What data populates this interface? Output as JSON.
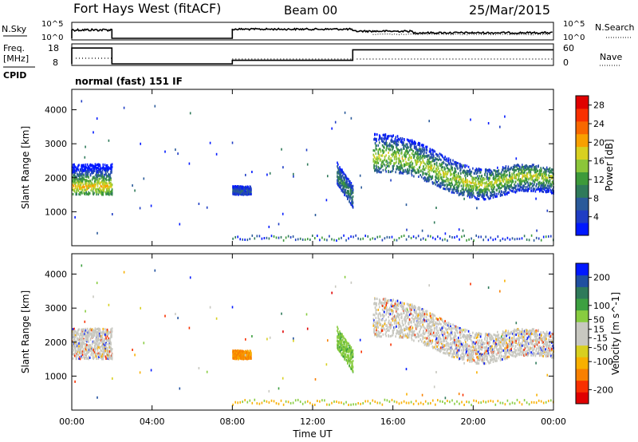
{
  "header": {
    "title": "Fort Hays West (fitACF)",
    "beam": "Beam 00",
    "date": "25/Mar/2015"
  },
  "strips": {
    "nsky_label": "N.Sky",
    "nsky_ticks": [
      "10^5",
      "10^0"
    ],
    "nsearch_label": "N.Search",
    "nsearch_ticks": [
      "10^5",
      "10^0"
    ],
    "freq_label_1": "Freq.",
    "freq_label_2": "[MHz]",
    "freq_ticks": [
      "18",
      "8"
    ],
    "nave_label": "Nave",
    "nave_ticks": [
      "60",
      "0"
    ],
    "cpid_label": "CPID",
    "cpid_text": "normal (fast) 151 IF"
  },
  "colors": {
    "power": [
      "#0018ff",
      "#1f3dc4",
      "#2a5a9a",
      "#2f7a5a",
      "#3d9a3a",
      "#8cc63a",
      "#d8d020",
      "#f8a000",
      "#f86800",
      "#f83000",
      "#e00000"
    ],
    "velocity": [
      "#e00000",
      "#f83000",
      "#f88000",
      "#f8b000",
      "#d8d020",
      "#c8c8c0",
      "#c8c8c0",
      "#88cc40",
      "#3da040",
      "#2f7a5a",
      "#2050a0",
      "#0018ff"
    ]
  },
  "chart_data": [
    {
      "type": "heatmap",
      "name_hint": "power",
      "xlabel": "",
      "ylabel": "Slant Range [km]",
      "xlim": [
        0,
        24
      ],
      "ylim": [
        0,
        4600
      ],
      "y_ticks": [
        1000,
        2000,
        3000,
        4000
      ],
      "colorbar_label": "Power [dB]",
      "colorbar_ticks": [
        4,
        8,
        12,
        16,
        20,
        24,
        28
      ],
      "colorbar_range": [
        0,
        30
      ],
      "scatter_regions": [
        {
          "t0": 0.0,
          "t1": 2.0,
          "rmin": 1500,
          "rmax": 2400,
          "peak": 1750,
          "level": 18
        },
        {
          "t0": 8.0,
          "t1": 8.9,
          "rmin": 1500,
          "rmax": 1750,
          "peak": 1600,
          "level": 6
        },
        {
          "t0": 13.2,
          "t1": 14.0,
          "rmin": 1200,
          "rmax": 2500,
          "peak": 1700,
          "level": 10
        },
        {
          "t0": 15.0,
          "t1": 24.0,
          "rmin": 1400,
          "rmax": 3700,
          "peak": 2200,
          "level": 16
        }
      ]
    },
    {
      "type": "heatmap",
      "name_hint": "velocity",
      "xlabel": "Time UT",
      "ylabel": "Slant Range [km]",
      "xlim": [
        0,
        24
      ],
      "ylim": [
        0,
        4600
      ],
      "y_ticks": [
        1000,
        2000,
        3000,
        4000
      ],
      "x_ticks": [
        "00:00",
        "04:00",
        "08:00",
        "12:00",
        "16:00",
        "20:00",
        "00:00"
      ],
      "colorbar_label": "Velocity [m s^-1]",
      "colorbar_ticks": [
        -200,
        -100,
        -50,
        -15,
        15,
        50,
        100,
        200
      ],
      "colorbar_range": [
        -250,
        250
      ]
    },
    {
      "type": "line",
      "name_hint": "frequency",
      "ylim": [
        8,
        18
      ],
      "series": [
        {
          "x": [
            0,
            0,
            2,
            2,
            8,
            8,
            14,
            14,
            24
          ],
          "y": [
            8,
            17,
            17,
            8,
            8,
            10,
            10,
            16,
            16
          ]
        }
      ]
    }
  ]
}
